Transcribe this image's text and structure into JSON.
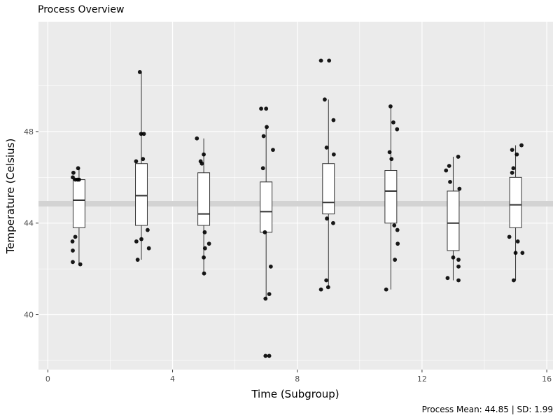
{
  "chart_data": {
    "type": "box",
    "title": "Process Overview",
    "xlabel": "Time (Subgroup)",
    "ylabel": "Temperature (Celsius)",
    "caption": "Process Mean: 44.85 | SD: 1.99",
    "xlim": [
      -0.3,
      16.2
    ],
    "ylim": [
      37.6,
      52.8
    ],
    "xticks": [
      0,
      4,
      8,
      12,
      16
    ],
    "yticks": [
      40,
      44,
      48
    ],
    "grid": true,
    "mean_line": 44.85,
    "colors": {
      "panel": "#ebebeb",
      "grid": "#ffffff",
      "box_fill": "#ffffff",
      "box_edge": "#333333",
      "point": "#000000",
      "mean_line": "#d3d3d3"
    },
    "boxes": [
      {
        "x": 1,
        "q1": 43.8,
        "median": 45.0,
        "q3": 45.9,
        "whisker_low": 42.2,
        "whisker_high": 46.4
      },
      {
        "x": 3,
        "q1": 43.9,
        "median": 45.2,
        "q3": 46.6,
        "whisker_low": 42.4,
        "whisker_high": 50.6
      },
      {
        "x": 5,
        "q1": 43.9,
        "median": 44.4,
        "q3": 46.2,
        "whisker_low": 41.8,
        "whisker_high": 47.7
      },
      {
        "x": 7,
        "q1": 43.6,
        "median": 44.5,
        "q3": 45.8,
        "whisker_low": 40.7,
        "whisker_high": 48.2
      },
      {
        "x": 9,
        "q1": 44.4,
        "median": 44.9,
        "q3": 46.6,
        "whisker_low": 41.2,
        "whisker_high": 49.4
      },
      {
        "x": 11,
        "q1": 44.0,
        "median": 45.4,
        "q3": 46.3,
        "whisker_low": 41.1,
        "whisker_high": 49.1
      },
      {
        "x": 13,
        "q1": 42.8,
        "median": 44.0,
        "q3": 45.4,
        "whisker_low": 41.5,
        "whisker_high": 46.9
      },
      {
        "x": 15,
        "q1": 43.8,
        "median": 44.8,
        "q3": 46.0,
        "whisker_low": 41.5,
        "whisker_high": 47.4
      }
    ],
    "points": [
      [
        0.97,
        46.4
      ],
      [
        0.82,
        46.2
      ],
      [
        0.8,
        46.0
      ],
      [
        0.88,
        45.9
      ],
      [
        0.95,
        45.9
      ],
      [
        1.0,
        45.9
      ],
      [
        0.88,
        43.4
      ],
      [
        0.79,
        43.2
      ],
      [
        0.8,
        42.8
      ],
      [
        0.8,
        42.3
      ],
      [
        1.04,
        42.2
      ],
      [
        2.95,
        50.6
      ],
      [
        2.99,
        47.9
      ],
      [
        3.08,
        47.9
      ],
      [
        3.05,
        46.8
      ],
      [
        2.83,
        46.7
      ],
      [
        3.0,
        43.3
      ],
      [
        2.84,
        43.2
      ],
      [
        3.2,
        43.7
      ],
      [
        3.24,
        42.9
      ],
      [
        2.88,
        42.4
      ],
      [
        4.78,
        47.7
      ],
      [
        5.0,
        47.0
      ],
      [
        4.9,
        46.7
      ],
      [
        4.94,
        46.6
      ],
      [
        5.03,
        43.6
      ],
      [
        5.17,
        43.1
      ],
      [
        5.04,
        42.9
      ],
      [
        5.0,
        42.5
      ],
      [
        5.01,
        41.8
      ],
      [
        6.84,
        49.0
      ],
      [
        7.0,
        49.0
      ],
      [
        7.02,
        48.2
      ],
      [
        6.92,
        47.8
      ],
      [
        7.22,
        47.2
      ],
      [
        6.9,
        46.4
      ],
      [
        6.96,
        43.6
      ],
      [
        7.15,
        42.1
      ],
      [
        7.1,
        40.9
      ],
      [
        6.98,
        40.7
      ],
      [
        6.98,
        38.2
      ],
      [
        7.1,
        38.2
      ],
      [
        8.76,
        51.1
      ],
      [
        9.02,
        51.1
      ],
      [
        8.88,
        49.4
      ],
      [
        9.16,
        48.5
      ],
      [
        8.94,
        47.3
      ],
      [
        9.17,
        47.0
      ],
      [
        8.95,
        44.2
      ],
      [
        9.15,
        44.0
      ],
      [
        8.93,
        41.5
      ],
      [
        8.99,
        41.2
      ],
      [
        8.76,
        41.1
      ],
      [
        10.99,
        49.1
      ],
      [
        11.08,
        48.4
      ],
      [
        11.2,
        48.1
      ],
      [
        10.96,
        47.1
      ],
      [
        11.02,
        46.8
      ],
      [
        11.11,
        43.9
      ],
      [
        11.21,
        43.7
      ],
      [
        11.22,
        43.1
      ],
      [
        11.13,
        42.4
      ],
      [
        10.85,
        41.1
      ],
      [
        13.16,
        46.9
      ],
      [
        12.87,
        46.5
      ],
      [
        12.77,
        46.3
      ],
      [
        12.9,
        45.8
      ],
      [
        13.2,
        45.5
      ],
      [
        13.0,
        42.5
      ],
      [
        13.17,
        42.4
      ],
      [
        13.17,
        42.1
      ],
      [
        12.82,
        41.6
      ],
      [
        13.17,
        41.5
      ],
      [
        15.19,
        47.4
      ],
      [
        14.89,
        47.2
      ],
      [
        15.04,
        47.0
      ],
      [
        14.93,
        46.4
      ],
      [
        14.89,
        46.2
      ],
      [
        14.8,
        43.4
      ],
      [
        15.07,
        43.2
      ],
      [
        15.0,
        42.7
      ],
      [
        15.22,
        42.7
      ],
      [
        14.94,
        41.5
      ]
    ]
  }
}
